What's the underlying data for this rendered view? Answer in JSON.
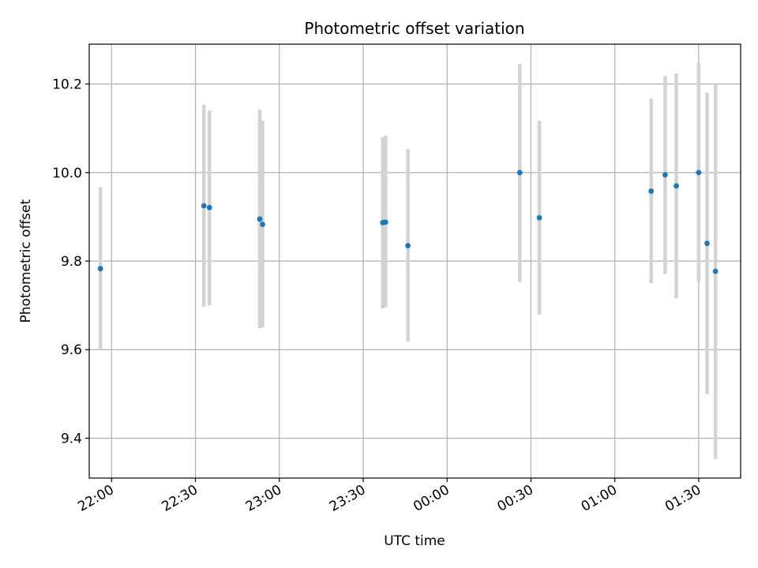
{
  "chart_data": {
    "type": "scatter",
    "title": "Photometric offset variation",
    "xlabel": "UTC time",
    "ylabel": "Photometric offset",
    "xlim": [
      "21:52",
      "01:45"
    ],
    "ylim": [
      9.31,
      10.29
    ],
    "grid": true,
    "x_ticks": [
      "22:00",
      "22:30",
      "23:00",
      "23:30",
      "00:00",
      "00:30",
      "01:00",
      "01:30"
    ],
    "y_ticks": [
      "9.4",
      "9.6",
      "9.8",
      "10.0",
      "10.2"
    ],
    "colors": {
      "point": "#1f77b4",
      "error_bar": "#d3d3d3",
      "grid": "#b0b0b0"
    },
    "points": [
      {
        "time": "21:56",
        "y": 9.783,
        "low": 9.6,
        "high": 9.967
      },
      {
        "time": "22:33",
        "y": 9.925,
        "low": 9.697,
        "high": 10.153
      },
      {
        "time": "22:35",
        "y": 9.921,
        "low": 9.7,
        "high": 10.14
      },
      {
        "time": "22:53",
        "y": 9.895,
        "low": 9.648,
        "high": 10.142
      },
      {
        "time": "22:54",
        "y": 9.883,
        "low": 9.65,
        "high": 10.117
      },
      {
        "time": "23:37",
        "y": 9.887,
        "low": 9.693,
        "high": 10.08
      },
      {
        "time": "23:38",
        "y": 9.888,
        "low": 9.696,
        "high": 10.084
      },
      {
        "time": "23:46",
        "y": 9.835,
        "low": 9.618,
        "high": 10.053
      },
      {
        "time": "00:26",
        "y": 10.0,
        "low": 9.753,
        "high": 10.246
      },
      {
        "time": "00:33",
        "y": 9.898,
        "low": 9.679,
        "high": 10.117
      },
      {
        "time": "01:13",
        "y": 9.958,
        "low": 9.75,
        "high": 10.167
      },
      {
        "time": "01:18",
        "y": 9.995,
        "low": 9.771,
        "high": 10.219
      },
      {
        "time": "01:22",
        "y": 9.97,
        "low": 9.716,
        "high": 10.224
      },
      {
        "time": "01:30",
        "y": 10.0,
        "low": 9.752,
        "high": 10.248
      },
      {
        "time": "01:33",
        "y": 9.84,
        "low": 9.5,
        "high": 10.181
      },
      {
        "time": "01:36",
        "y": 9.777,
        "low": 9.353,
        "high": 10.2
      }
    ]
  }
}
